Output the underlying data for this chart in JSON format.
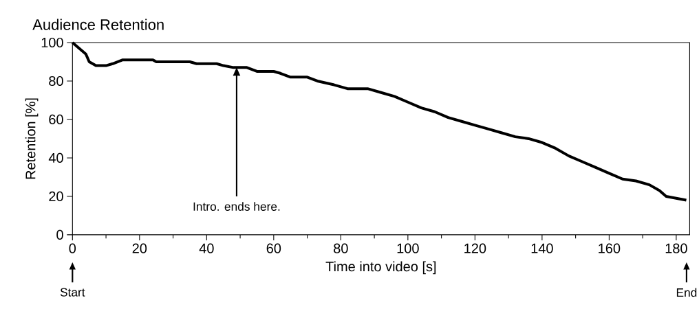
{
  "chart_data": {
    "type": "line",
    "title": "Audience Retention",
    "xlabel": "Time into video [s]",
    "ylabel": "Retention [%]",
    "x": [
      0,
      2,
      4,
      5,
      7,
      10,
      12,
      15,
      24,
      25,
      35,
      37,
      43,
      45,
      48,
      52,
      55,
      60,
      62,
      65,
      70,
      73,
      78,
      82,
      88,
      92,
      96,
      100,
      104,
      108,
      112,
      116,
      120,
      124,
      128,
      132,
      136,
      140,
      144,
      148,
      152,
      156,
      160,
      164,
      168,
      172,
      175,
      177,
      180,
      183
    ],
    "series": [
      {
        "color": "#000000",
        "values": [
          100,
          97,
          94,
          90,
          88,
          88,
          89,
          91,
          91,
          90,
          90,
          89,
          89,
          88,
          87,
          87,
          85,
          85,
          84,
          82,
          82,
          80,
          78,
          76,
          76,
          74,
          72,
          69,
          66,
          64,
          61,
          59,
          57,
          55,
          53,
          51,
          50,
          48,
          45,
          41,
          38,
          35,
          32,
          29,
          28,
          26,
          23,
          20,
          19,
          18
        ]
      }
    ],
    "xlim": [
      0,
      184
    ],
    "ylim": [
      0,
      100
    ],
    "xticks": [
      0,
      20,
      40,
      60,
      80,
      100,
      120,
      140,
      160,
      180
    ],
    "yticks": [
      0,
      20,
      40,
      60,
      80,
      100
    ],
    "annotations": [
      "Intro. ends here.",
      "Start",
      "End"
    ],
    "grid": false,
    "marker": "none",
    "line_style": "solid"
  }
}
